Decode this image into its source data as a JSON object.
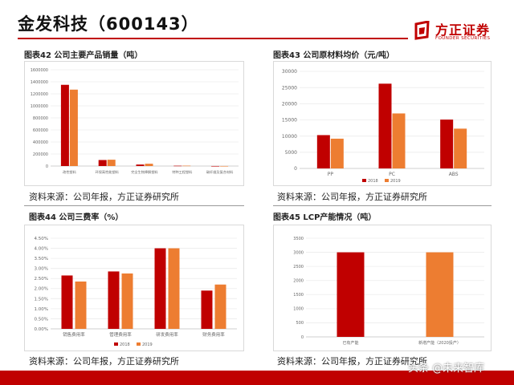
{
  "header": {
    "title": "金发科技（600143）",
    "logo_cn": "方正证券",
    "logo_en": "FOUNDER SECURITIES"
  },
  "colors": {
    "series_2018": "#c00000",
    "series_2019": "#ed7d31",
    "accent": "#c00000"
  },
  "sources": {
    "tl": "资料来源：公司年报，方正证券研究所",
    "tr": "资料来源：公司年报，方正证券研究所",
    "bl": "资料来源：公司年报，方正证券研究所",
    "br": "资料来源：公司年报，方正证券研究所"
  },
  "watermark": "头条 @未来智库",
  "chart_data": [
    {
      "id": "chart42",
      "type": "bar",
      "title": "图表42 公司主要产品销量（吨）",
      "categories": [
        "改性塑料",
        "环保高性能塑料",
        "完全生物降解塑料",
        "特种工程塑料",
        "碳纤维及复合材料"
      ],
      "series": [
        {
          "name": "2018",
          "values": [
            1350000,
            100000,
            25000,
            5000,
            500
          ]
        },
        {
          "name": "2019",
          "values": [
            1270000,
            105000,
            38000,
            6000,
            600
          ]
        }
      ],
      "yticks": [
        0,
        200000,
        400000,
        600000,
        800000,
        1000000,
        1200000,
        1400000,
        1600000
      ],
      "ylim": [
        0,
        1600000
      ],
      "legend": "none"
    },
    {
      "id": "chart43",
      "type": "bar",
      "title": "图表43 公司原材料均价（元/吨）",
      "categories": [
        "PP",
        "PC",
        "ABS"
      ],
      "series": [
        {
          "name": "2018",
          "values": [
            10300,
            26200,
            15100
          ]
        },
        {
          "name": "2019",
          "values": [
            9200,
            17000,
            12300
          ]
        }
      ],
      "yticks": [
        0,
        5000,
        10000,
        15000,
        20000,
        25000,
        30000
      ],
      "ylim": [
        0,
        30000
      ],
      "legend": "bottom"
    },
    {
      "id": "chart44",
      "type": "bar",
      "title": "图表44 公司三费率（%）",
      "categories": [
        "销售费用率",
        "管理费用率",
        "研发费用率",
        "财务费用率"
      ],
      "series": [
        {
          "name": "2018",
          "values": [
            2.65,
            2.85,
            4.0,
            1.9
          ]
        },
        {
          "name": "2019",
          "values": [
            2.35,
            2.75,
            4.0,
            2.2
          ]
        }
      ],
      "yticks": [
        0,
        0.5,
        1.0,
        1.5,
        2.0,
        2.5,
        3.0,
        3.5,
        4.0,
        4.5
      ],
      "ytick_labels": [
        "0.00%",
        "0.50%",
        "1.00%",
        "1.50%",
        "2.00%",
        "2.50%",
        "3.00%",
        "3.50%",
        "4.00%",
        "4.50%"
      ],
      "ylim": [
        0,
        4.5
      ],
      "legend": "bottom"
    },
    {
      "id": "chart45",
      "type": "bar",
      "title": "图表45 LCP产能情况（吨）",
      "categories": [
        "已有产能",
        "新增产能（2020投产）"
      ],
      "series": [
        {
          "name": "",
          "values": [
            3000,
            3000
          ],
          "colors": [
            "#c00000",
            "#ed7d31"
          ]
        }
      ],
      "yticks": [
        0,
        500,
        1000,
        1500,
        2000,
        2500,
        3000,
        3500
      ],
      "ylim": [
        0,
        3500
      ],
      "legend": "none"
    }
  ]
}
